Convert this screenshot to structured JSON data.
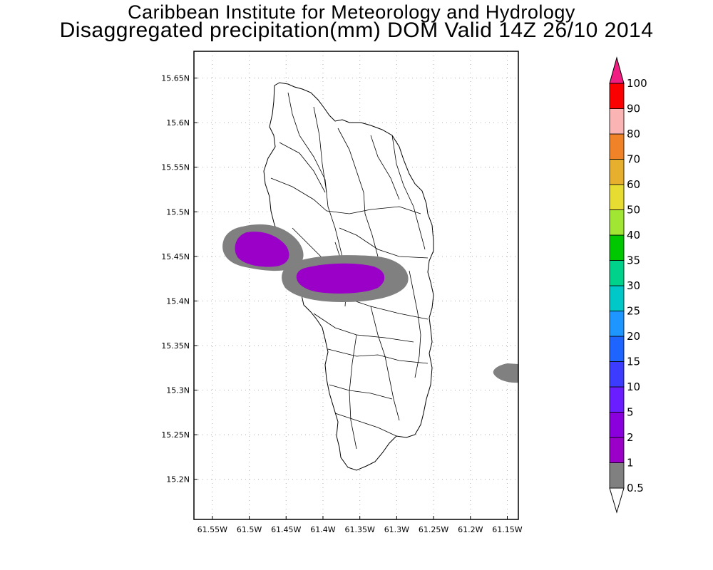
{
  "title": {
    "line1": "Caribbean Institute for Meteorology and Hydrology",
    "line2": "Disaggregated precipitation(mm) DOM Valid 14Z 26/10 2014"
  },
  "map": {
    "lon_range": [
      -61.575,
      -61.135
    ],
    "lat_range": [
      15.155,
      15.68
    ],
    "lat_ticks": [
      "15.2N",
      "15.25N",
      "15.3N",
      "15.35N",
      "15.4N",
      "15.45N",
      "15.5N",
      "15.55N",
      "15.6N",
      "15.65N"
    ],
    "lon_ticks": [
      "61.55W",
      "61.5W",
      "61.45W",
      "61.4W",
      "61.35W",
      "61.3W",
      "61.25W",
      "61.2W",
      "61.15W"
    ],
    "precip_areas": [
      {
        "name": "west-offshore",
        "min_mm": 0.5,
        "color": "#808080"
      },
      {
        "name": "central-band",
        "min_mm": 0.5,
        "color": "#808080"
      },
      {
        "name": "east-offshore",
        "min_mm": 0.5,
        "color": "#808080"
      },
      {
        "name": "west-core",
        "min_mm": 1,
        "color": "#9a00c8"
      },
      {
        "name": "central-core",
        "min_mm": 1,
        "color": "#9a00c8"
      }
    ]
  },
  "colorbar": {
    "levels": [
      {
        "label": "0.5",
        "color": "#808080"
      },
      {
        "label": "1",
        "color": "#9a00c8"
      },
      {
        "label": "2",
        "color": "#8a00dc"
      },
      {
        "label": "5",
        "color": "#6a1eff"
      },
      {
        "label": "10",
        "color": "#3c3cff"
      },
      {
        "label": "15",
        "color": "#1e64ff"
      },
      {
        "label": "20",
        "color": "#1e96ff"
      },
      {
        "label": "25",
        "color": "#00c8c8"
      },
      {
        "label": "30",
        "color": "#00d28c"
      },
      {
        "label": "35",
        "color": "#00c800"
      },
      {
        "label": "40",
        "color": "#a0e632"
      },
      {
        "label": "50",
        "color": "#e6dc32"
      },
      {
        "label": "60",
        "color": "#e6af2d"
      },
      {
        "label": "70",
        "color": "#f08228"
      },
      {
        "label": "80",
        "color": "#fab4b4"
      },
      {
        "label": "90",
        "color": "#fa0000"
      },
      {
        "label": "100",
        "color": "#f04a4a"
      }
    ],
    "top_arrow_color": "#f01e82"
  }
}
